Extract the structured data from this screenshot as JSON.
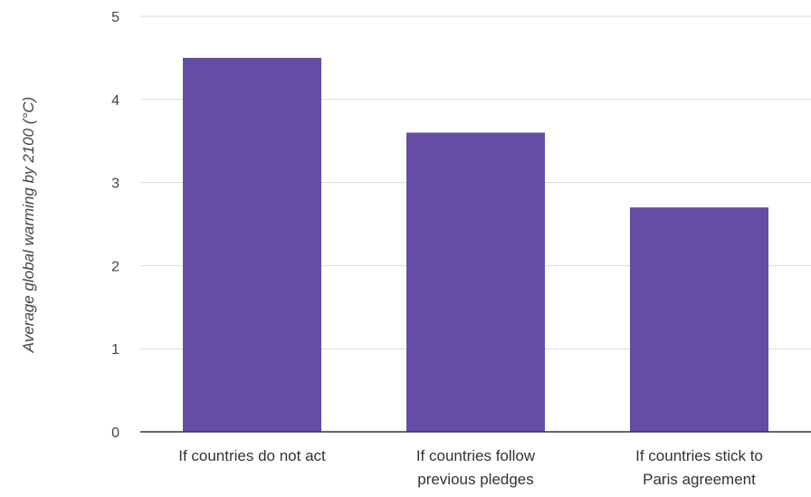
{
  "chart_data": {
    "type": "bar",
    "categories": [
      [
        "If countries do not act"
      ],
      [
        "If countries follow",
        "previous pledges"
      ],
      [
        "If countries stick to",
        "Paris agreement"
      ]
    ],
    "values": [
      4.5,
      3.6,
      2.7
    ],
    "ylabel": "Average global warming by 2100 (°C)",
    "xlabel": "",
    "ylim": [
      0,
      5
    ],
    "yticks": [
      0,
      1,
      2,
      3,
      4,
      5
    ],
    "grid": true,
    "bar_color": "#654da6"
  }
}
